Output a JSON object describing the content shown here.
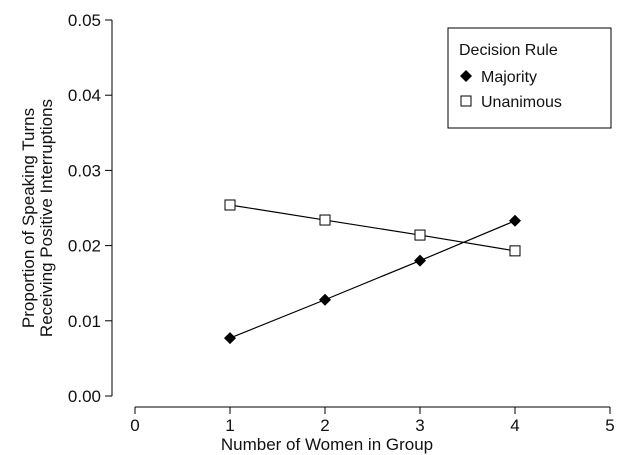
{
  "chart_data": {
    "type": "line",
    "title": "",
    "xlabel": "Number of Women in Group",
    "ylabel_lines": [
      "Proportion of Speaking Turns",
      "Receiving Positive Interruptions"
    ],
    "xlim": [
      0,
      5
    ],
    "ylim": [
      0,
      0.05
    ],
    "x_ticks": [
      0,
      1,
      2,
      3,
      4,
      5
    ],
    "x_tick_labels": [
      "0",
      "1",
      "2",
      "3",
      "4",
      "5"
    ],
    "y_ticks": [
      0,
      0.01,
      0.02,
      0.03,
      0.04,
      0.05
    ],
    "y_tick_labels": [
      "0.00",
      "0.01",
      "0.02",
      "0.03",
      "0.04",
      "0.05"
    ],
    "grid": false,
    "legend": {
      "title": "Decision Rule",
      "placement": "top-right"
    },
    "series": [
      {
        "name": "Majority",
        "marker": "filled-diamond",
        "color": "#000000",
        "x": [
          1,
          2,
          3,
          4
        ],
        "y": [
          0.0077,
          0.0128,
          0.018,
          0.0233
        ]
      },
      {
        "name": "Unanimous",
        "marker": "open-square",
        "color": "#000000",
        "x": [
          1,
          2,
          3,
          4
        ],
        "y": [
          0.0254,
          0.0234,
          0.0214,
          0.0193
        ]
      }
    ]
  }
}
